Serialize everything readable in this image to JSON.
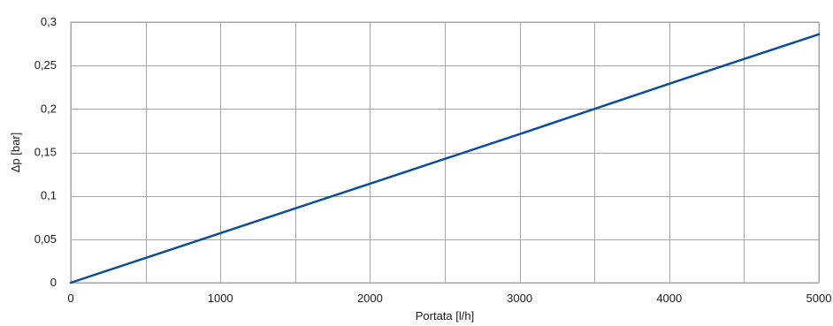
{
  "chart_data": {
    "type": "line",
    "title": "",
    "xlabel": "Portata [l/h]",
    "ylabel": "Δp [bar]",
    "xlim": [
      0,
      5000
    ],
    "ylim": [
      0,
      0.3
    ],
    "x_ticks": [
      0,
      1000,
      2000,
      3000,
      4000,
      5000
    ],
    "x_tick_labels": [
      "0",
      "1000",
      "2000",
      "3000",
      "4000",
      "5000"
    ],
    "x_grid": [
      0,
      500,
      1000,
      1500,
      2000,
      2500,
      3000,
      3500,
      4000,
      4500,
      5000
    ],
    "y_ticks": [
      0,
      0.05,
      0.1,
      0.15,
      0.2,
      0.25,
      0.3
    ],
    "y_tick_labels": [
      "0",
      "0,05",
      "0,1",
      "0,15",
      "0,2",
      "0,25",
      "0,3"
    ],
    "grid": true,
    "legend": "none",
    "series": [
      {
        "color": "#0d4c9a",
        "x": [
          0,
          1000,
          2000,
          3000,
          3500,
          4000,
          5000
        ],
        "y": [
          0,
          0.057,
          0.114,
          0.171,
          0.2,
          0.229,
          0.286
        ]
      }
    ]
  }
}
